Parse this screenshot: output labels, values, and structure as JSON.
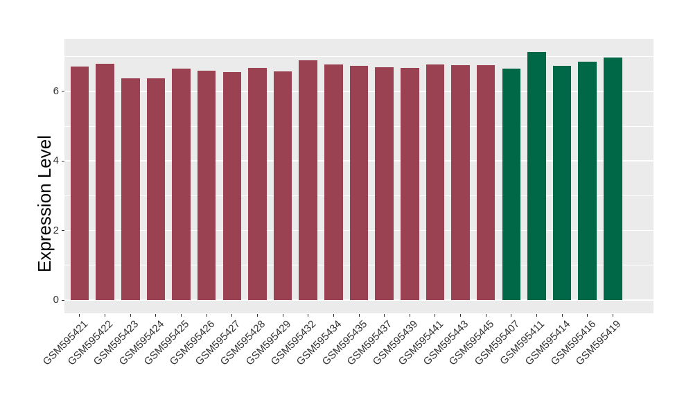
{
  "figure": {
    "background": "#FFFFFF"
  },
  "chart_data": {
    "type": "bar",
    "title": "",
    "xlabel": "",
    "ylabel": "Expression Level",
    "legend": "none",
    "grid": "on",
    "panel_bg": "#EBEBEB",
    "grid_color": "#FFFFFF",
    "x_tick_rotation": 45,
    "ylim": [
      -0.36,
      7.51
    ],
    "y_ticks": {
      "major": [
        0,
        2,
        4,
        6
      ],
      "minor": [
        1,
        3,
        5,
        7
      ]
    },
    "y_tick_labels": [
      "0",
      "2",
      "4",
      "6"
    ],
    "categories": [
      "GSM595421",
      "GSM595422",
      "GSM595423",
      "GSM595424",
      "GSM595425",
      "GSM595426",
      "GSM595427",
      "GSM595428",
      "GSM595429",
      "GSM595432",
      "GSM595434",
      "GSM595435",
      "GSM595437",
      "GSM595439",
      "GSM595441",
      "GSM595443",
      "GSM595445",
      "GSM595407",
      "GSM595411",
      "GSM595414",
      "GSM595416",
      "GSM595419"
    ],
    "values": [
      6.71,
      6.8,
      6.37,
      6.38,
      6.65,
      6.6,
      6.56,
      6.68,
      6.57,
      6.89,
      6.77,
      6.74,
      6.7,
      6.67,
      6.77,
      6.75,
      6.75,
      6.66,
      7.14,
      6.74,
      6.85,
      6.97
    ],
    "bar_groups": [
      "red",
      "red",
      "red",
      "red",
      "red",
      "red",
      "red",
      "red",
      "red",
      "red",
      "red",
      "red",
      "red",
      "red",
      "red",
      "red",
      "red",
      "green",
      "green",
      "green",
      "green",
      "green"
    ],
    "colors": {
      "red": "#9A4251",
      "green": "#006847"
    }
  }
}
